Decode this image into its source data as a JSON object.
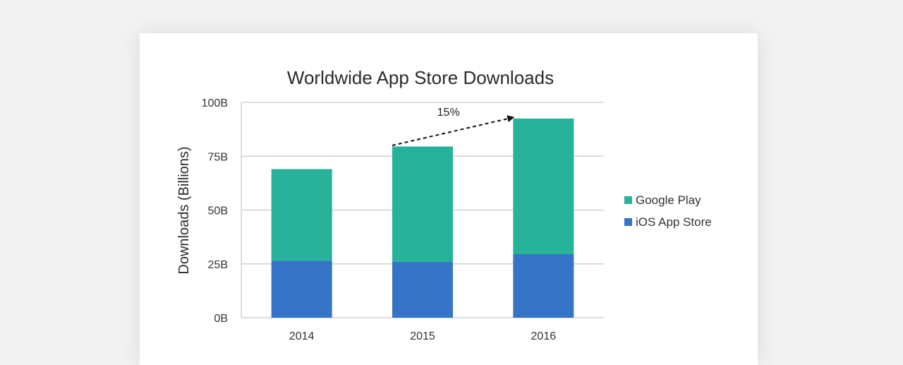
{
  "chart_data": {
    "type": "bar",
    "stacked": true,
    "title": "Worldwide App Store Downloads",
    "ylabel": "Downloads (Billions)",
    "xlabel": "",
    "categories": [
      "2014",
      "2015",
      "2016"
    ],
    "ylim": [
      0,
      100
    ],
    "yticks": [
      0,
      25,
      50,
      75,
      100
    ],
    "ytick_labels": [
      "0B",
      "25B",
      "50B",
      "75B",
      "100B"
    ],
    "grid": true,
    "legend_position": "right",
    "series": [
      {
        "name": "iOS App Store",
        "color": "#3674c7",
        "values": [
          26.5,
          26,
          29.5
        ]
      },
      {
        "name": "Google Play",
        "color": "#26b39a",
        "values": [
          42.5,
          53.5,
          63
        ]
      }
    ],
    "annotations": [
      {
        "text": "15%",
        "from": {
          "x": "2015",
          "y": 80
        },
        "to": {
          "x": "2016",
          "y": 93
        }
      }
    ]
  }
}
